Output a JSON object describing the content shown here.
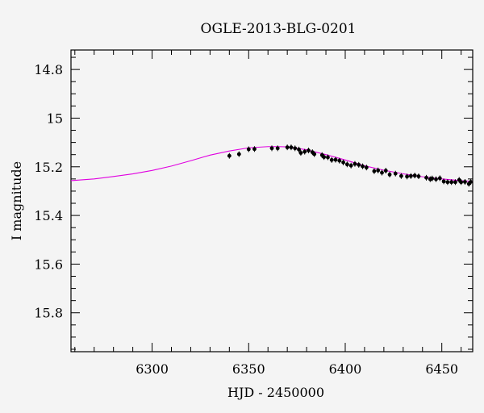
{
  "chart_data": {
    "type": "scatter",
    "title": "OGLE-2013-BLG-0201",
    "xlabel": "HJD - 2450000",
    "ylabel": "I magnitude",
    "xlim": [
      6258,
      6466
    ],
    "ylim": [
      15.96,
      14.72
    ],
    "y_inverted": true,
    "x_ticks": [
      6300,
      6350,
      6400,
      6450
    ],
    "y_ticks": [
      14.8,
      15,
      15.2,
      15.4,
      15.6,
      15.8
    ],
    "x_tick_labels": [
      "6300",
      "6350",
      "6400",
      "6450"
    ],
    "y_tick_labels": [
      "14.8",
      "15",
      "15.2",
      "15.4",
      "15.6",
      "15.8"
    ],
    "model": {
      "color": "#e000e0",
      "x": [
        6258,
        6270,
        6280,
        6290,
        6300,
        6310,
        6320,
        6330,
        6340,
        6350,
        6360,
        6365,
        6370,
        6380,
        6390,
        6400,
        6410,
        6420,
        6430,
        6440,
        6450,
        6460,
        6466
      ],
      "y": [
        15.257,
        15.25,
        15.24,
        15.229,
        15.215,
        15.197,
        15.175,
        15.152,
        15.135,
        15.122,
        15.117,
        15.117,
        15.118,
        15.13,
        15.15,
        15.172,
        15.196,
        15.214,
        15.229,
        15.241,
        15.25,
        15.257,
        15.26
      ]
    },
    "series": [
      {
        "name": "",
        "color": "#000000",
        "x": [
          6340,
          6345,
          6350,
          6353,
          6362,
          6365,
          6370,
          6372,
          6374,
          6376,
          6377,
          6379,
          6381,
          6383,
          6384,
          6388,
          6389,
          6391,
          6393,
          6395,
          6397,
          6399,
          6401,
          6403,
          6405,
          6407,
          6409,
          6411,
          6415,
          6417,
          6419,
          6421,
          6423,
          6426,
          6429,
          6432,
          6434,
          6436,
          6438,
          6442,
          6444,
          6445,
          6447,
          6449,
          6451,
          6453,
          6455,
          6457,
          6459,
          6460,
          6462,
          6464,
          6465
        ],
        "y": [
          15.155,
          15.148,
          15.128,
          15.127,
          15.124,
          15.124,
          15.12,
          15.12,
          15.124,
          15.129,
          15.143,
          15.138,
          15.133,
          15.14,
          15.148,
          15.152,
          15.16,
          15.161,
          15.172,
          15.171,
          15.175,
          15.182,
          15.19,
          15.195,
          15.188,
          15.192,
          15.198,
          15.203,
          15.218,
          15.215,
          15.224,
          15.216,
          15.232,
          15.228,
          15.238,
          15.24,
          15.238,
          15.236,
          15.239,
          15.245,
          15.251,
          15.248,
          15.251,
          15.247,
          15.26,
          15.263,
          15.263,
          15.263,
          15.254,
          15.263,
          15.262,
          15.27,
          15.262
        ]
      }
    ],
    "grid": false,
    "legend": "none"
  }
}
